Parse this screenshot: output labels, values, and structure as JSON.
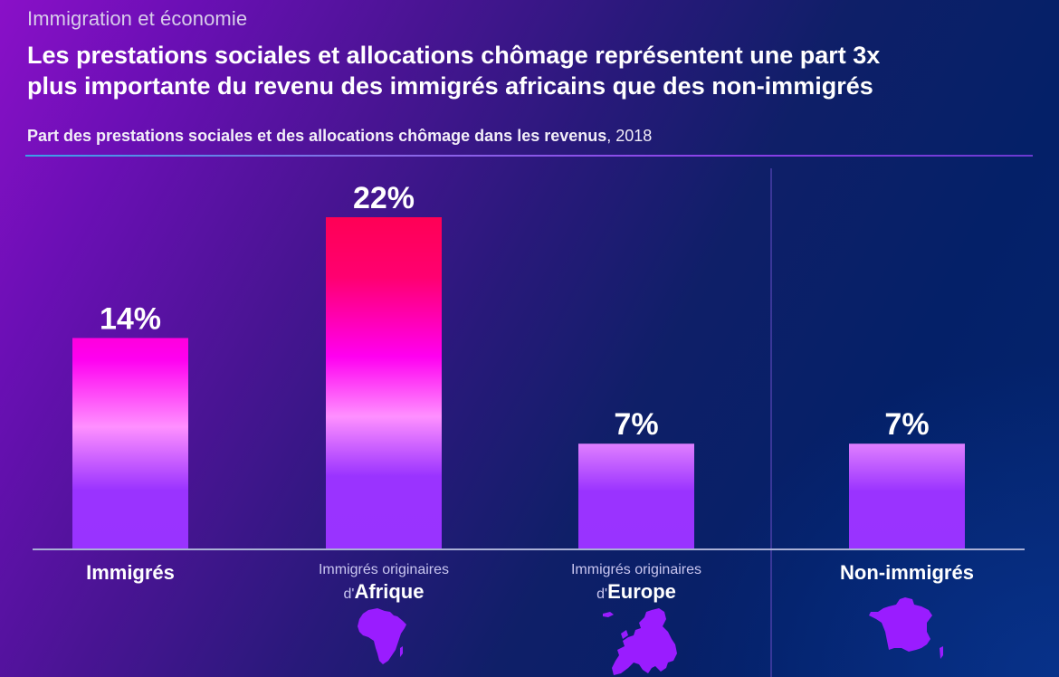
{
  "header": {
    "kicker": "Immigration et économie",
    "headline_line1": "Les prestations sociales et allocations chômage représentent une part 3x",
    "headline_line2": "plus importante du revenu des immigrés africains que des non-immigrés",
    "subtitle_bold": "Part des prestations sociales et des allocations chômage dans les revenus",
    "subtitle_plain": ", 2018"
  },
  "colors": {
    "bar_highlight_top": "#ff0055",
    "bar_mid_magenta": "#ff00f0",
    "bar_light_pink": "#ff90ff",
    "bar_base_purple": "#9933ff",
    "map_fill": "#9a1cff",
    "axis": "#a9b0d6",
    "divider": "#4a3fa8"
  },
  "chart_data": {
    "type": "bar",
    "title": "Part des prestations sociales et des allocations chômage dans les revenus, 2018",
    "xlabel": "",
    "ylabel": "",
    "ylim": [
      0,
      22
    ],
    "grid": false,
    "legend": "none",
    "categories": [
      "Immigrés",
      "Immigrés originaires d'Afrique",
      "Immigrés originaires d'Europe",
      "Non-immigrés"
    ],
    "values": [
      14,
      22,
      7,
      7
    ],
    "unit": "%",
    "data_labels": [
      "14%",
      "22%",
      "7%",
      "7%"
    ],
    "category_labels": [
      {
        "main": "Immigrés"
      },
      {
        "prefix_line": "Immigrés originaires",
        "pre": "d'",
        "emphasis": "Afrique",
        "map_icon": "africa-map-icon"
      },
      {
        "prefix_line": "Immigrés originaires",
        "pre": "d'",
        "emphasis": "Europe",
        "map_icon": "europe-map-icon"
      },
      {
        "main": "Non-immigrés",
        "map_icon": "france-map-icon"
      }
    ],
    "highlight_index": 1
  }
}
